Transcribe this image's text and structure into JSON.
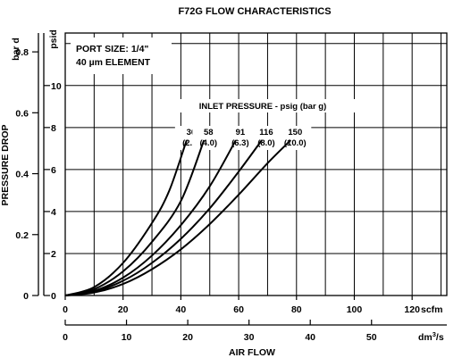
{
  "chart_data": {
    "type": "line",
    "title": "F72G FLOW CHARACTERISTICS",
    "note_lines": [
      "PORT SIZE: 1/4\"",
      "40 µm ELEMENT"
    ],
    "legend_title": "INLET PRESSURE - psig (bar g)",
    "xlabel": "AIR FLOW",
    "ylabel": "PRESSURE DROP",
    "x_unit_scfm": "scfm",
    "x_unit_dm3s_base": "dm",
    "x_unit_dm3s_sup": "3",
    "x_unit_dm3s_tail": "/s",
    "y_unit_bar": "bar d",
    "y_unit_psid": "psid",
    "xlim_scfm": [
      0,
      132
    ],
    "ylim_psid": [
      0,
      12.5
    ],
    "x_ticks_scfm": [
      0,
      20,
      40,
      60,
      80,
      100,
      120
    ],
    "x_ticks_dm3s": [
      0,
      10,
      20,
      30,
      40,
      50
    ],
    "y_ticks_psid": [
      0,
      2,
      4,
      6,
      8,
      10
    ],
    "y_ticks_bar": [
      0,
      0.2,
      0.4,
      0.6,
      0.8
    ],
    "grid_x_scfm": [
      10,
      20,
      30,
      40,
      50,
      60,
      70,
      80,
      90,
      100,
      110,
      120,
      130
    ],
    "grid_y_psid": [
      2,
      4,
      6,
      8,
      10,
      12
    ],
    "series": [
      {
        "name": "36",
        "sub": "(2.5)",
        "x": [
          0,
          10,
          20,
          30,
          36,
          42
        ],
        "y": [
          0,
          0.4,
          1.55,
          3.45,
          5.0,
          7.4
        ]
      },
      {
        "name": "58",
        "sub": "(4.0)",
        "x": [
          0,
          10,
          20,
          30,
          40,
          48
        ],
        "y": [
          0,
          0.3,
          1.15,
          2.55,
          4.5,
          7.4
        ]
      },
      {
        "name": "91",
        "sub": "(6.3)",
        "x": [
          0,
          10,
          20,
          30,
          40,
          50,
          59
        ],
        "y": [
          0,
          0.22,
          0.85,
          1.9,
          3.35,
          5.2,
          7.4
        ]
      },
      {
        "name": "116",
        "sub": "(8.0)",
        "x": [
          0,
          10,
          20,
          30,
          40,
          50,
          60,
          68
        ],
        "y": [
          0,
          0.18,
          0.7,
          1.55,
          2.7,
          4.15,
          5.9,
          7.4
        ]
      },
      {
        "name": "150",
        "sub": "(10.0)",
        "x": [
          0,
          10,
          20,
          30,
          40,
          50,
          60,
          70,
          78
        ],
        "y": [
          0,
          0.14,
          0.55,
          1.25,
          2.2,
          3.4,
          4.8,
          6.3,
          7.4
        ]
      }
    ]
  }
}
